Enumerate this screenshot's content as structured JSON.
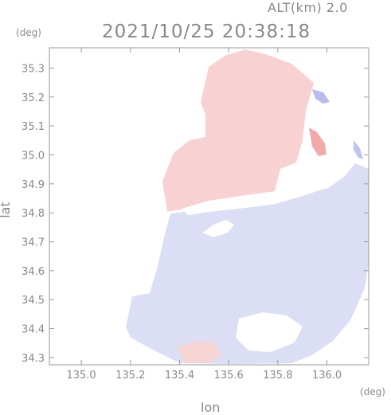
{
  "header": {
    "altitude_label": "ALT(km) 2.0",
    "timestamp": "2021/10/25 20:38:18"
  },
  "chart_data": {
    "type": "heatmap",
    "xlabel": "lon",
    "ylabel": "lat",
    "x_unit": "(deg)",
    "y_unit": "(deg)",
    "xlim": [
      134.87,
      136.17
    ],
    "ylim": [
      34.275,
      35.37
    ],
    "x_ticks": [
      135.0,
      135.2,
      135.4,
      135.6,
      135.8,
      136.0
    ],
    "x_tick_labels": [
      "135.0",
      "135.2",
      "135.4",
      "135.6",
      "135.8",
      "136.0"
    ],
    "y_ticks": [
      34.3,
      34.4,
      34.5,
      34.6,
      34.7,
      34.8,
      34.9,
      35.0,
      35.1,
      35.2,
      35.3
    ],
    "y_tick_labels": [
      "34.3",
      "34.4",
      "34.5",
      "34.6",
      "34.7",
      "34.8",
      "34.9",
      "35.0",
      "35.1",
      "35.2",
      "35.3"
    ],
    "colors": {
      "positive": "#f7c9c9",
      "positive_strong": "#f0a0a0",
      "negative": "#d4d6f4",
      "negative_strong": "#a8aee8",
      "frame": "#999999"
    }
  }
}
